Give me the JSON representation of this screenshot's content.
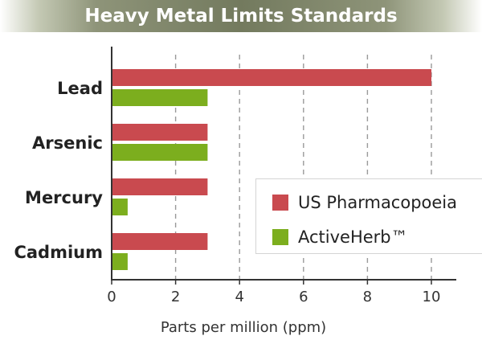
{
  "chart_data": {
    "type": "bar",
    "orientation": "horizontal",
    "title": "Heavy Metal Limits Standards",
    "xlabel": "Parts per million (ppm)",
    "ylabel": "",
    "xlim": [
      0,
      10.8
    ],
    "xticks": [
      0,
      2,
      4,
      6,
      8,
      10
    ],
    "grid": "vertical dashed",
    "categories": [
      "Lead",
      "Arsenic",
      "Mercury",
      "Cadmium"
    ],
    "series": [
      {
        "name": "US Pharmacopoeia",
        "color": "#c94a4f",
        "values": [
          10,
          3,
          3,
          3
        ]
      },
      {
        "name": "ActiveHerb™",
        "color": "#7cae1e",
        "values": [
          3,
          3,
          0.5,
          0.5
        ]
      }
    ],
    "legend_position": "lower-right"
  }
}
